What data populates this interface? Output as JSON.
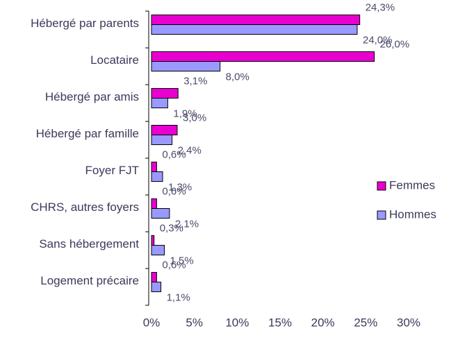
{
  "chart_data": {
    "type": "hbar",
    "categories": [
      "Hébergé par parents",
      "Locataire",
      "Hébergé par amis",
      "Hébergé par famille",
      "Foyer FJT",
      "CHRS, autres foyers",
      "Sans hébergement",
      "Logement précaire"
    ],
    "series": [
      {
        "name": "Femmes",
        "color": "#e800d0",
        "values": [
          24.3,
          26.0,
          3.1,
          3.0,
          0.6,
          0.6,
          0.3,
          0.6
        ],
        "value_labels": [
          "24,3%",
          "26,0%",
          "3,1%",
          "3,0%",
          "0,6%",
          "0,6%",
          "0,3%",
          "0,6%"
        ]
      },
      {
        "name": "Hommes",
        "color": "#9999ff",
        "values": [
          24.0,
          8.0,
          1.9,
          2.4,
          1.3,
          2.1,
          1.5,
          1.1
        ],
        "value_labels": [
          "24,0%",
          "8,0%",
          "1,9%",
          "2,4%",
          "1,3%",
          "2,1%",
          "1,5%",
          "1,1%"
        ]
      }
    ],
    "xlim": [
      0,
      30
    ],
    "xticks": [
      {
        "value": 0,
        "label": "0%"
      },
      {
        "value": 5,
        "label": "5%"
      },
      {
        "value": 10,
        "label": "10%"
      },
      {
        "value": 15,
        "label": "15%"
      },
      {
        "value": 20,
        "label": "20%"
      },
      {
        "value": 25,
        "label": "25%"
      },
      {
        "value": 30,
        "label": "30%"
      }
    ],
    "legend": "right"
  }
}
